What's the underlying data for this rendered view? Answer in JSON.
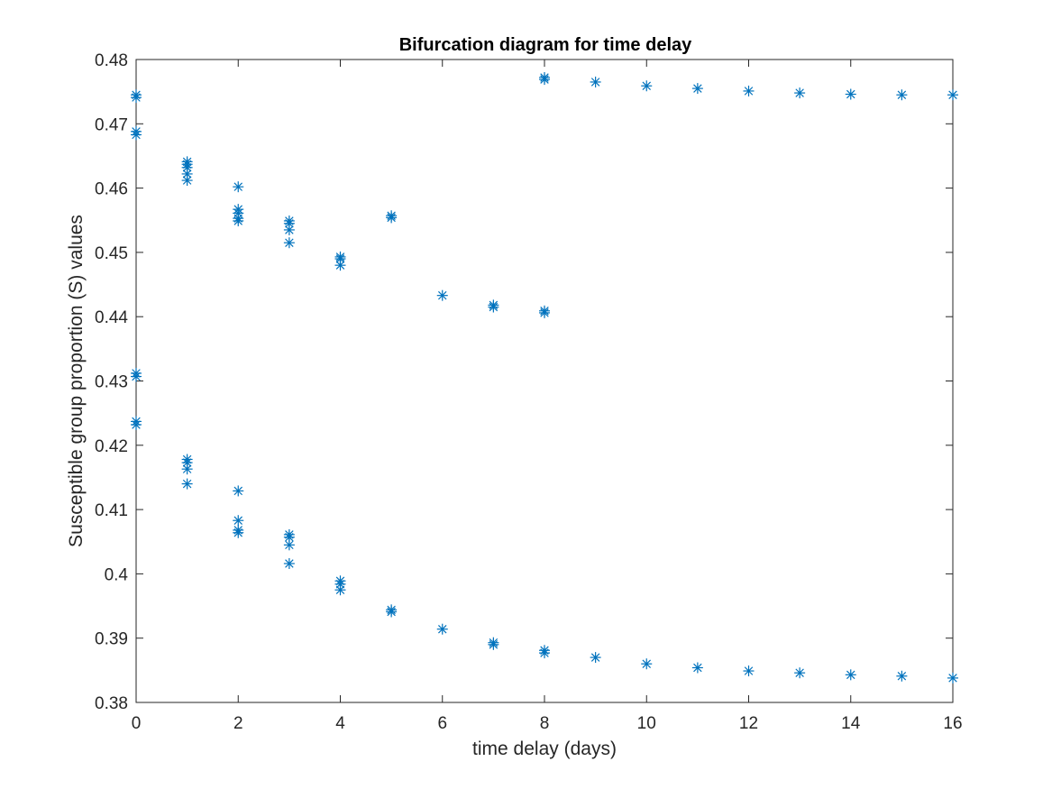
{
  "chart_data": {
    "type": "scatter",
    "title": "Bifurcation diagram for time delay",
    "xlabel": "time delay (days)",
    "ylabel": "Susceptible group proportion (S) values",
    "xlim": [
      0,
      16
    ],
    "ylim": [
      0.38,
      0.48
    ],
    "xticks": [
      "0",
      "2",
      "4",
      "6",
      "8",
      "10",
      "12",
      "14",
      "16"
    ],
    "yticks": [
      "0.38",
      "0.39",
      "0.4",
      "0.41",
      "0.42",
      "0.43",
      "0.44",
      "0.45",
      "0.46",
      "0.47",
      "0.48"
    ],
    "grid": false,
    "marker": "asterisk",
    "color": "#0072BD",
    "series": [
      {
        "points": [
          [
            0,
            0.4745
          ],
          [
            0,
            0.4741
          ],
          [
            0,
            0.4688
          ],
          [
            0,
            0.4683
          ],
          [
            0,
            0.4312
          ],
          [
            0,
            0.4307
          ],
          [
            0,
            0.4237
          ],
          [
            0,
            0.4232
          ],
          [
            1,
            0.4641
          ],
          [
            1,
            0.4637
          ],
          [
            1,
            0.4632
          ],
          [
            1,
            0.4622
          ],
          [
            1,
            0.4612
          ],
          [
            1,
            0.4178
          ],
          [
            1,
            0.4173
          ],
          [
            1,
            0.4163
          ],
          [
            1,
            0.414
          ],
          [
            2,
            0.4602
          ],
          [
            2,
            0.4567
          ],
          [
            2,
            0.4561
          ],
          [
            2,
            0.4553
          ],
          [
            2,
            0.4549
          ],
          [
            2,
            0.4129
          ],
          [
            2,
            0.4083
          ],
          [
            2,
            0.4068
          ],
          [
            2,
            0.4064
          ],
          [
            3,
            0.4549
          ],
          [
            3,
            0.4545
          ],
          [
            3,
            0.4535
          ],
          [
            3,
            0.4515
          ],
          [
            3,
            0.4061
          ],
          [
            3,
            0.4057
          ],
          [
            3,
            0.4045
          ],
          [
            3,
            0.4016
          ],
          [
            4,
            0.4493
          ],
          [
            4,
            0.449
          ],
          [
            4,
            0.448
          ],
          [
            4,
            0.3989
          ],
          [
            4,
            0.3984
          ],
          [
            4,
            0.3975
          ],
          [
            5,
            0.4557
          ],
          [
            5,
            0.4554
          ],
          [
            5,
            0.3944
          ],
          [
            5,
            0.3941
          ],
          [
            6,
            0.4433
          ],
          [
            6,
            0.3914
          ],
          [
            7,
            0.4418
          ],
          [
            7,
            0.4415
          ],
          [
            7,
            0.3893
          ],
          [
            7,
            0.389
          ],
          [
            8,
            0.4772
          ],
          [
            8,
            0.4769
          ],
          [
            8,
            0.4409
          ],
          [
            8,
            0.4406
          ],
          [
            8,
            0.3881
          ],
          [
            8,
            0.3877
          ],
          [
            9,
            0.4765
          ],
          [
            9,
            0.387
          ],
          [
            10,
            0.4759
          ],
          [
            10,
            0.386
          ],
          [
            11,
            0.4755
          ],
          [
            11,
            0.3854
          ],
          [
            12,
            0.4751
          ],
          [
            12,
            0.3849
          ],
          [
            13,
            0.4748
          ],
          [
            13,
            0.3846
          ],
          [
            14,
            0.4746
          ],
          [
            14,
            0.3843
          ],
          [
            15,
            0.4745
          ],
          [
            15,
            0.3841
          ],
          [
            16,
            0.4745
          ],
          [
            16,
            0.3838
          ]
        ]
      }
    ]
  }
}
